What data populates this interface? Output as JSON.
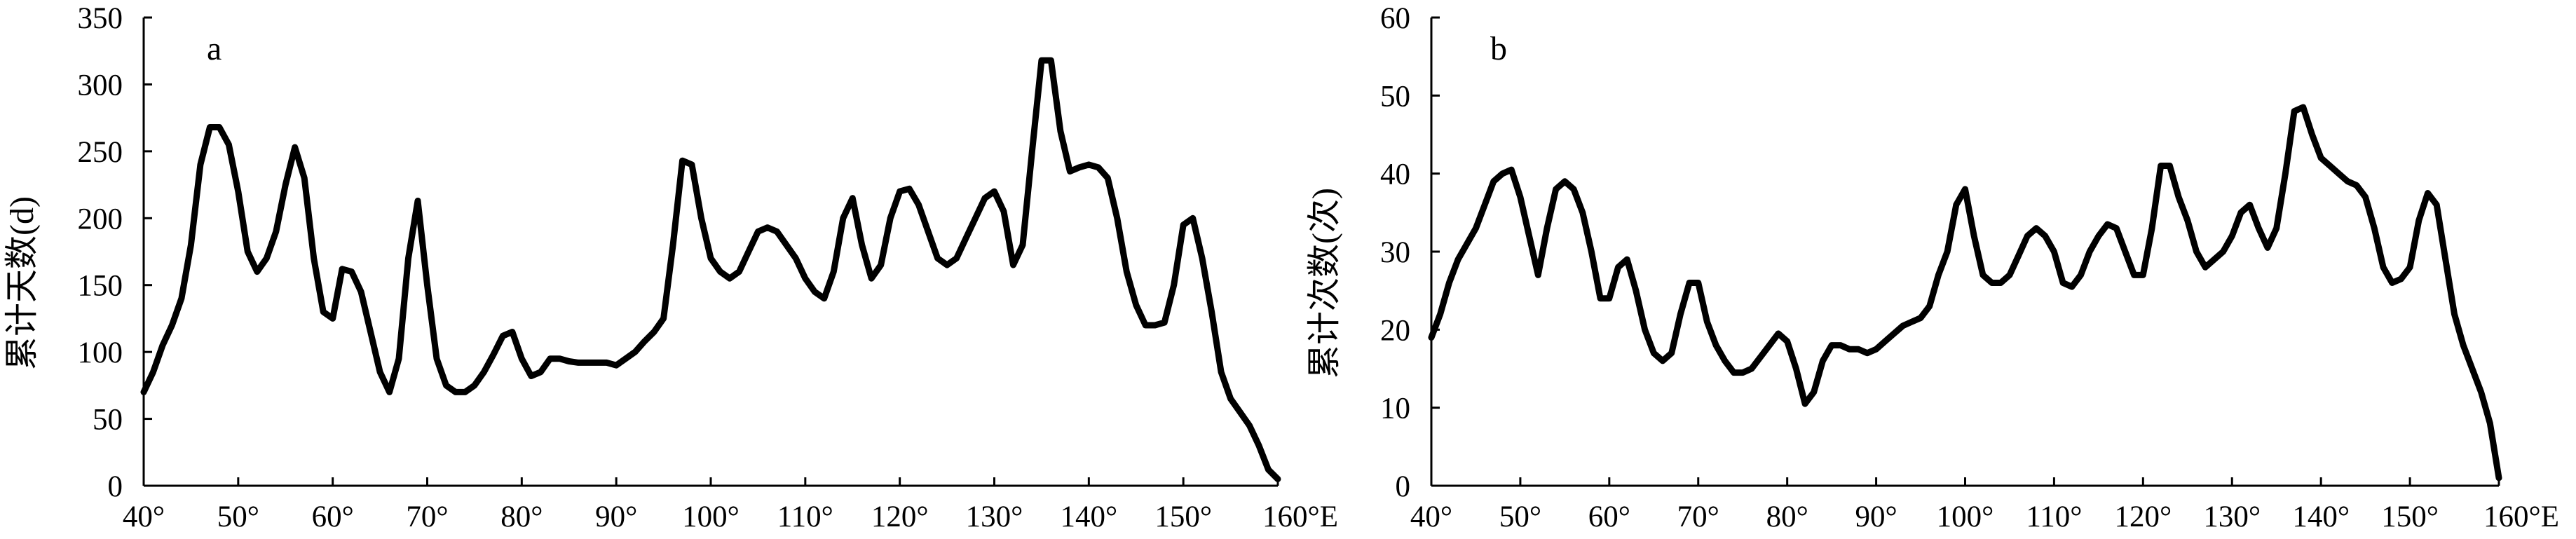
{
  "chart_data": [
    {
      "type": "line",
      "panel_label": "a",
      "ylabel": "累计天数(d)",
      "xlabel": "",
      "x_unit_suffix": "°E",
      "xlim": [
        40,
        160
      ],
      "ylim": [
        0,
        350
      ],
      "x_ticks": [
        40,
        50,
        60,
        70,
        80,
        90,
        100,
        110,
        120,
        130,
        140,
        150,
        160
      ],
      "x_tick_labels": [
        "40°",
        "50°",
        "60°",
        "70°",
        "80°",
        "90°",
        "100°",
        "110°",
        "120°",
        "130°",
        "140°",
        "150°",
        "160°E"
      ],
      "y_ticks": [
        0,
        50,
        100,
        150,
        200,
        250,
        300,
        350
      ],
      "y_tick_labels": [
        "0",
        "50",
        "100",
        "150",
        "200",
        "250",
        "300",
        "350"
      ],
      "grid": false,
      "series": [
        {
          "x": [
            40,
            41,
            42,
            43,
            44,
            45,
            46,
            47,
            48,
            49,
            50,
            51,
            52,
            53,
            54,
            55,
            56,
            57,
            58,
            59,
            60,
            61,
            62,
            63,
            64,
            65,
            66,
            67,
            68,
            69,
            70,
            71,
            72,
            73,
            74,
            75,
            76,
            77,
            78,
            79,
            80,
            81,
            82,
            83,
            84,
            85,
            86,
            87,
            88,
            89,
            90,
            91,
            92,
            93,
            94,
            95,
            96,
            97,
            98,
            99,
            100,
            101,
            102,
            103,
            104,
            105,
            106,
            107,
            108,
            109,
            110,
            111,
            112,
            113,
            114,
            115,
            116,
            117,
            118,
            119,
            120,
            121,
            122,
            123,
            124,
            125,
            126,
            127,
            128,
            129,
            130,
            131,
            132,
            133,
            134,
            135,
            136,
            137,
            138,
            139,
            140,
            141,
            142,
            143,
            144,
            145,
            146,
            147,
            148,
            149,
            150,
            151,
            152,
            153,
            154,
            155,
            156,
            157,
            158,
            159,
            160
          ],
          "values": [
            70,
            85,
            105,
            120,
            140,
            180,
            240,
            268,
            268,
            255,
            220,
            175,
            160,
            170,
            190,
            225,
            253,
            230,
            170,
            130,
            125,
            162,
            160,
            145,
            115,
            85,
            70,
            95,
            170,
            213,
            150,
            95,
            75,
            70,
            70,
            75,
            85,
            98,
            112,
            115,
            95,
            82,
            85,
            95,
            95,
            93,
            92,
            92,
            92,
            92,
            90,
            95,
            100,
            108,
            115,
            125,
            180,
            243,
            240,
            200,
            170,
            160,
            155,
            160,
            175,
            190,
            193,
            190,
            180,
            170,
            155,
            145,
            140,
            160,
            200,
            215,
            180,
            155,
            165,
            200,
            220,
            222,
            210,
            190,
            170,
            165,
            170,
            185,
            200,
            215,
            220,
            205,
            165,
            180,
            250,
            318,
            318,
            265,
            235,
            238,
            240,
            238,
            230,
            200,
            160,
            135,
            120,
            120,
            122,
            150,
            195,
            200,
            170,
            130,
            85,
            65,
            55,
            45,
            30,
            12,
            5
          ]
        }
      ]
    },
    {
      "type": "line",
      "panel_label": "b",
      "ylabel": "累计次数(次)",
      "xlabel": "",
      "x_unit_suffix": "°E",
      "xlim": [
        40,
        160
      ],
      "ylim": [
        0,
        60
      ],
      "x_ticks": [
        40,
        50,
        60,
        70,
        80,
        90,
        100,
        110,
        120,
        130,
        140,
        150,
        160
      ],
      "x_tick_labels": [
        "40°",
        "50°",
        "60°",
        "70°",
        "80°",
        "90°",
        "100°",
        "110°",
        "120°",
        "130°",
        "140°",
        "150°",
        "160°E"
      ],
      "y_ticks": [
        0,
        10,
        20,
        30,
        40,
        50,
        60
      ],
      "y_tick_labels": [
        "0",
        "10",
        "20",
        "30",
        "40",
        "50",
        "60"
      ],
      "grid": false,
      "series": [
        {
          "x": [
            40,
            41,
            42,
            43,
            44,
            45,
            46,
            47,
            48,
            49,
            50,
            51,
            52,
            53,
            54,
            55,
            56,
            57,
            58,
            59,
            60,
            61,
            62,
            63,
            64,
            65,
            66,
            67,
            68,
            69,
            70,
            71,
            72,
            73,
            74,
            75,
            76,
            77,
            78,
            79,
            80,
            81,
            82,
            83,
            84,
            85,
            86,
            87,
            88,
            89,
            90,
            91,
            92,
            93,
            94,
            95,
            96,
            97,
            98,
            99,
            100,
            101,
            102,
            103,
            104,
            105,
            106,
            107,
            108,
            109,
            110,
            111,
            112,
            113,
            114,
            115,
            116,
            117,
            118,
            119,
            120,
            121,
            122,
            123,
            124,
            125,
            126,
            127,
            128,
            129,
            130,
            131,
            132,
            133,
            134,
            135,
            136,
            137,
            138,
            139,
            140,
            141,
            142,
            143,
            144,
            145,
            146,
            147,
            148,
            149,
            150,
            151,
            152,
            153,
            154,
            155,
            156,
            157,
            158,
            159,
            160
          ],
          "values": [
            19,
            22,
            26,
            29,
            31,
            33,
            36,
            39,
            40,
            40.5,
            37,
            32,
            27,
            33,
            38,
            39,
            38,
            35,
            30,
            24,
            24,
            28,
            29,
            25,
            20,
            17,
            16,
            17,
            22,
            26,
            26,
            21,
            18,
            16,
            14.5,
            14.5,
            15,
            16.5,
            18,
            19.5,
            18.5,
            15,
            10.5,
            12,
            16,
            18,
            18,
            17.5,
            17.5,
            17,
            17.5,
            18.5,
            19.5,
            20.5,
            21,
            21.5,
            23,
            27,
            30,
            36,
            38,
            32,
            27,
            26,
            26,
            27,
            29.5,
            32,
            33,
            32,
            30,
            26,
            25.5,
            27,
            30,
            32,
            33.5,
            33,
            30,
            27,
            27,
            33,
            41,
            41,
            37,
            34,
            30,
            28,
            29,
            30,
            32,
            35,
            36,
            33,
            30.5,
            33,
            40,
            48,
            48.5,
            45,
            42,
            41,
            40,
            39,
            38.5,
            37,
            33,
            28,
            26,
            26.5,
            28,
            34,
            37.5,
            36,
            29,
            22,
            18,
            15,
            12,
            8,
            1
          ]
        }
      ]
    }
  ]
}
